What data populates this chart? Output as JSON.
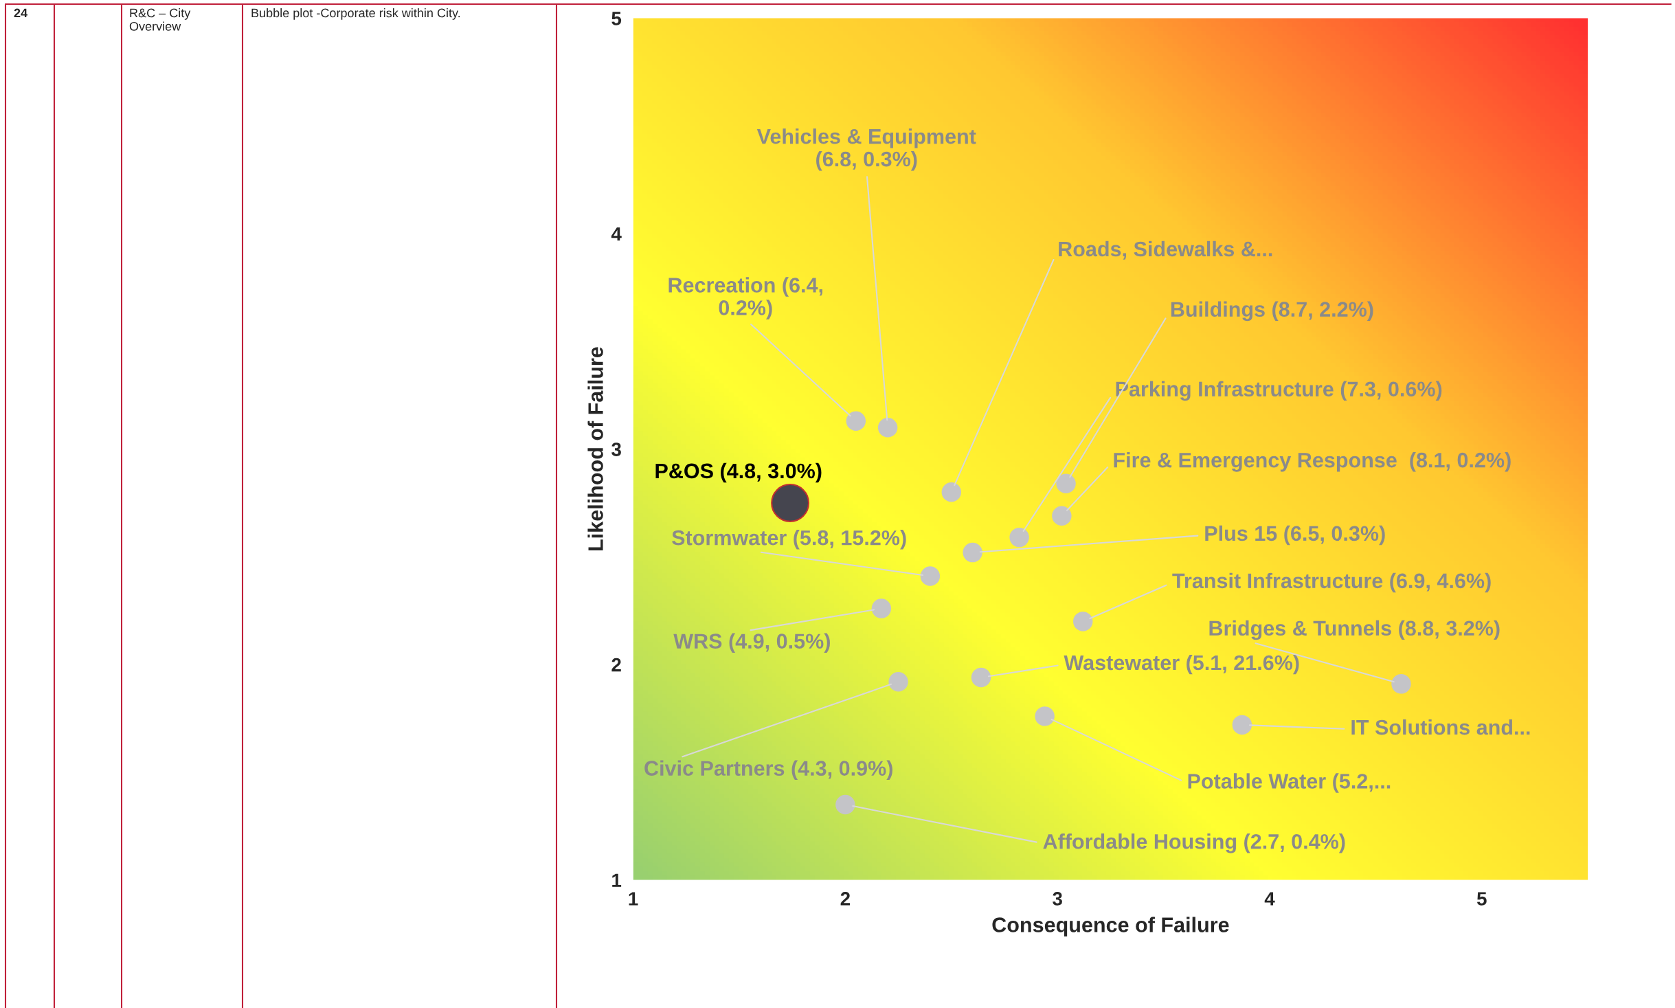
{
  "chart_data": {
    "type": "bubble",
    "xlabel": "Consequence of Failure",
    "ylabel": "Likelihood of Failure",
    "xlim": [
      1,
      5.5
    ],
    "ylim": [
      1,
      5
    ],
    "xticks": [
      1,
      2,
      3,
      4,
      5
    ],
    "yticks": [
      1,
      2,
      3,
      4,
      5
    ],
    "grid": false,
    "x": [
      1.74,
      2.05,
      2.2,
      2.5,
      2.4,
      2.6,
      2.82,
      3.04,
      3.02,
      2.17,
      3.12,
      2.25,
      2.64,
      2.94,
      4.62,
      3.87,
      2.0
    ],
    "values": [
      2.75,
      3.13,
      3.1,
      2.8,
      2.41,
      2.52,
      2.59,
      2.84,
      2.69,
      2.26,
      2.2,
      1.92,
      1.94,
      1.76,
      1.91,
      1.72,
      1.35
    ],
    "sizes": [
      1,
      0.28,
      0.28,
      0.28,
      0.28,
      0.28,
      0.28,
      0.28,
      0.28,
      0.28,
      0.28,
      0.28,
      0.28,
      0.28,
      0.28,
      0.28,
      0.28
    ],
    "colors": [
      "#45454f",
      "#c4c4c8",
      "#c4c4c8",
      "#c4c4c8",
      "#c4c4c8",
      "#c4c4c8",
      "#c4c4c8",
      "#c4c4c8",
      "#c4c4c8",
      "#c4c4c8",
      "#c4c4c8",
      "#c4c4c8",
      "#c4c4c8",
      "#c4c4c8",
      "#c4c4c8",
      "#c4c4c8",
      "#c4c4c8"
    ],
    "value_labels": [
      "P&OS (4.8, 3.0%)",
      "Recreation (6.4,\n0.2%)",
      "Vehicles & Equipment\n(6.8, 0.3%)",
      "Roads, Sidewalks &...",
      "Stormwater (5.8, 15.2%)",
      "Plus 15 (6.5, 0.3%)",
      "Parking Infrastructure (7.3, 0.6%)",
      "Buildings (8.7, 2.2%)",
      "Fire & Emergency Response  (8.1, 0.2%)",
      "WRS (4.9, 0.5%)",
      "Transit Infrastructure (6.9, 4.6%)",
      "Civic Partners (4.3, 0.9%)",
      "Wastewater (5.1, 21.6%)",
      "Potable Water (5.2,...",
      "Bridges & Tunnels (8.8, 3.2%)",
      "IT Solutions and...",
      "Affordable Housing (2.7, 0.4%)"
    ],
    "annotations": [
      "24",
      "R&C – City\nOverview",
      "Bubble plot -Corporate risk within City."
    ]
  }
}
